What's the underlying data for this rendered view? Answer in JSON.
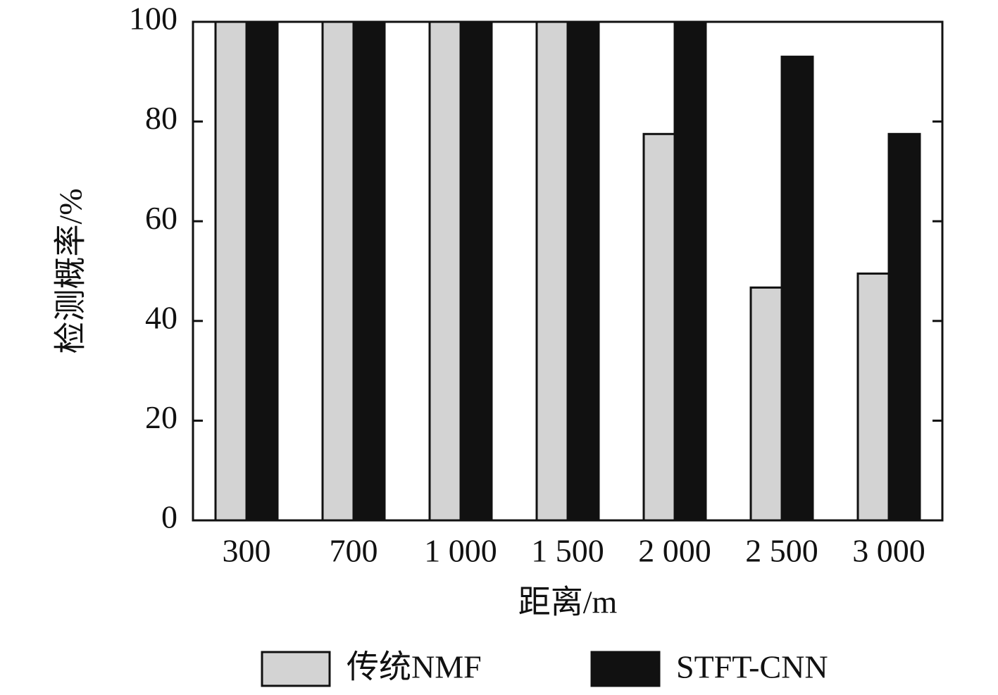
{
  "chart_data": {
    "type": "bar",
    "x_label": "距离/m",
    "y_label": "检测概率/%",
    "categories": [
      "300",
      "700",
      "1 000",
      "1 500",
      "2 000",
      "2 500",
      "3 000"
    ],
    "series": [
      {
        "name": "传统NMF",
        "color": "#d3d3d3",
        "values": [
          100,
          100,
          100,
          100,
          77.5,
          46.7,
          49.5
        ]
      },
      {
        "name": "STFT-CNN",
        "color": "#111111",
        "values": [
          100,
          100,
          100,
          100,
          100,
          93,
          77.5
        ]
      }
    ],
    "ylim": [
      0,
      100
    ],
    "yticks": [
      0,
      20,
      40,
      60,
      80,
      100
    ],
    "legend": "bottom"
  }
}
